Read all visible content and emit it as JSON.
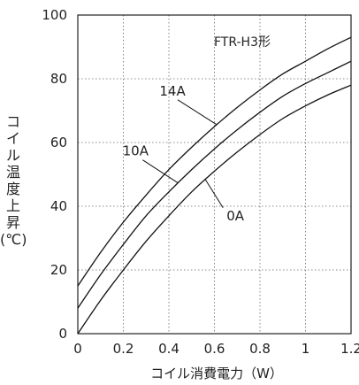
{
  "chart_data": {
    "type": "line",
    "title": "",
    "model_label": "FTR-H3形",
    "xlabel": "コイル消費電力（W）",
    "ylabel": "コイル温度上昇(℃)",
    "ylabel_chars": [
      "コ",
      "イ",
      "ル",
      "温",
      "度",
      "上",
      "昇",
      "(℃)"
    ],
    "xlim": [
      0,
      1.2
    ],
    "ylim": [
      0,
      100
    ],
    "xticks": [
      "0",
      "0.2",
      "0.4",
      "0.6",
      "0.8",
      "1",
      "1.2"
    ],
    "yticks": [
      "0",
      "20",
      "40",
      "60",
      "80",
      "100"
    ],
    "grid": true,
    "series": [
      {
        "name": "14A",
        "x": [
          0,
          0.1,
          0.2,
          0.3,
          0.4,
          0.5,
          0.6,
          0.7,
          0.8,
          0.9,
          1.0,
          1.1,
          1.2
        ],
        "y": [
          15,
          25.5,
          35,
          43.5,
          51.5,
          58.5,
          65,
          71,
          76.5,
          81.5,
          85.5,
          89.5,
          93
        ]
      },
      {
        "name": "10A",
        "x": [
          0,
          0.1,
          0.2,
          0.3,
          0.4,
          0.5,
          0.6,
          0.7,
          0.8,
          0.9,
          1.0,
          1.1,
          1.2
        ],
        "y": [
          8,
          18.5,
          28,
          37,
          44.5,
          51.5,
          58,
          64,
          69.5,
          74.5,
          78.5,
          82,
          85.5
        ]
      },
      {
        "name": "0A",
        "x": [
          0,
          0.1,
          0.2,
          0.3,
          0.4,
          0.5,
          0.6,
          0.7,
          0.8,
          0.9,
          1.0,
          1.1,
          1.2
        ],
        "y": [
          0,
          10.5,
          20,
          29,
          37,
          44.5,
          51,
          57,
          62.5,
          67.5,
          71.5,
          75,
          78
        ]
      }
    ],
    "annotations": [
      {
        "series": "14A",
        "text": "14A",
        "at_x": 0.61
      },
      {
        "series": "10A",
        "text": "10A",
        "at_x": 0.44
      },
      {
        "series": "0A",
        "text": "0A",
        "at_x": 0.56
      }
    ]
  }
}
